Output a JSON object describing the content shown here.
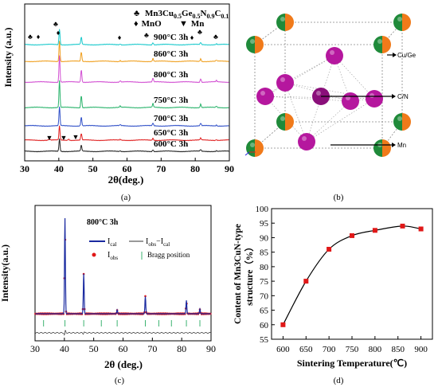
{
  "panels": {
    "a": {
      "caption": "(a)"
    },
    "b": {
      "caption": "(b)"
    },
    "c": {
      "caption": "(c)"
    },
    "d": {
      "caption": "(d)"
    }
  },
  "colors": {
    "cyan": "#19c9cc",
    "orange": "#f0a020",
    "magenta": "#d24fd2",
    "green": "#29b36b",
    "blue": "#3050c8",
    "red": "#e02020",
    "black": "#222222",
    "atom_magenta": "#b5179e",
    "atom_green": "#1f8a3a",
    "atom_orange": "#f07a1a",
    "marker_red": "#e01818"
  },
  "chart_data": [
    {
      "type": "line",
      "panel": "a",
      "xlabel": "2θ(deg.)",
      "ylabel": "Intensity (a.u.)",
      "xlim": [
        30,
        90
      ],
      "xticks": [
        "30",
        "40",
        "50",
        "60",
        "70",
        "80",
        "90"
      ],
      "legend": [
        {
          "symbol": "♣",
          "label_main": "Mn3Cu",
          "label_sub1": "0.5",
          "label_mid": "Ge",
          "label_sub2": "0.5",
          "label_mid2": "N",
          "label_sub3": "0.9",
          "label_mid3": "C",
          "label_sub4": "0.1"
        },
        {
          "symbol": "♦",
          "label": "MnO"
        },
        {
          "symbol": "▼",
          "label": "Mn"
        }
      ],
      "series": [
        {
          "name": "900°C 3h",
          "color": "cyan"
        },
        {
          "name": "860°C 3h",
          "color": "orange"
        },
        {
          "name": "800°C 3h",
          "color": "magenta"
        },
        {
          "name": "750°C 3h",
          "color": "green"
        },
        {
          "name": "700°C 3h",
          "color": "blue"
        },
        {
          "name": "650°C 3h",
          "color": "red"
        },
        {
          "name": "600°C 3h",
          "color": "black"
        }
      ],
      "peaks": [
        {
          "x": 40.2,
          "h": 1.0
        },
        {
          "x": 46.6,
          "h": 0.45
        },
        {
          "x": 58.0,
          "h": 0.05
        },
        {
          "x": 67.6,
          "h": 0.14
        },
        {
          "x": 81.6,
          "h": 0.13
        },
        {
          "x": 86.2,
          "h": 0.05
        }
      ]
    },
    {
      "type": "line",
      "panel": "c",
      "title": "800°C 3h",
      "xlabel": "2θ (deg.)",
      "ylabel": "Intensity(a.u.)",
      "xlim": [
        30,
        90
      ],
      "xticks": [
        "30",
        "40",
        "50",
        "60",
        "70",
        "80",
        "90"
      ],
      "legend": [
        {
          "label_main": "I",
          "label_sub": "cal"
        },
        {
          "label_main": "I",
          "label_sub": "obs",
          "label_mid": "−I",
          "label_sub2": "cal"
        },
        {
          "label_main": "I",
          "label_sub": "obs"
        },
        {
          "label": "Bragg position"
        }
      ],
      "peaks": [
        {
          "x": 40.2,
          "h": 1.0
        },
        {
          "x": 46.6,
          "h": 0.42
        },
        {
          "x": 58.0,
          "h": 0.04
        },
        {
          "x": 67.6,
          "h": 0.18
        },
        {
          "x": 81.6,
          "h": 0.14
        },
        {
          "x": 86.2,
          "h": 0.05
        }
      ],
      "bragg": [
        32.9,
        40.2,
        46.6,
        52.6,
        58.0,
        67.6,
        72.2,
        76.5,
        81.6,
        86.2
      ]
    },
    {
      "type": "line",
      "panel": "d",
      "xlabel": "Sintering Temperature(℃)",
      "ylabel_line1": "Content of Mn3CuN-type",
      "ylabel_line2": "structure（%）",
      "xlim": [
        575,
        925
      ],
      "ylim": [
        55,
        100
      ],
      "xticks": [
        600,
        650,
        700,
        750,
        800,
        850,
        900
      ],
      "yticks": [
        55,
        60,
        65,
        70,
        75,
        80,
        85,
        90,
        95,
        100
      ],
      "x": [
        600,
        650,
        700,
        750,
        800,
        860,
        900
      ],
      "y": [
        60,
        75,
        86,
        90.7,
        92.5,
        94,
        93
      ]
    }
  ],
  "crystal": {
    "labels": {
      "cu_ge": "Cu/Ge",
      "c_n": "C/N",
      "mn": "Mn"
    }
  }
}
